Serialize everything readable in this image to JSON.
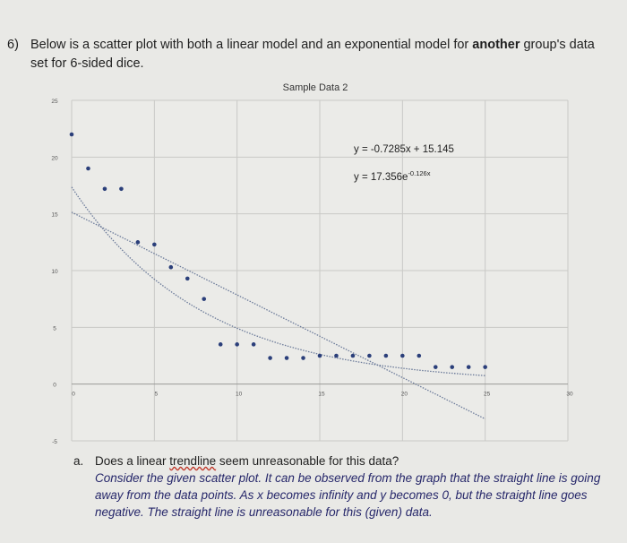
{
  "question": {
    "number": "6)",
    "text_before_bold": "Below is a scatter plot with both a linear model and an exponential model for ",
    "bold_text": "another",
    "text_after_bold": " group's data",
    "line2": "set for 6-sided dice."
  },
  "part_a": {
    "label": "a.",
    "question_before": "Does a linear ",
    "question_underlined": "trendline",
    "question_after": " seem unreasonable for this data?",
    "answer": "Consider the given scatter plot. It can be observed from the graph that the straight line is going away from the data points. As x becomes infinity and y becomes 0, but the straight line goes negative. The straight line is unreasonable for this (given) data."
  },
  "chart_data": {
    "type": "scatter",
    "title": "Sample Data 2",
    "xlim": [
      0,
      30
    ],
    "ylim": [
      -5,
      25
    ],
    "x_ticks": [
      "0",
      "5",
      "10",
      "15",
      "20",
      "25",
      "30"
    ],
    "y_ticks": [
      "25",
      "20",
      "15",
      "10",
      "5",
      "0",
      "-5"
    ],
    "grid": true,
    "series": [
      {
        "x": [
          0,
          1,
          2,
          3,
          4,
          5,
          6,
          7,
          8,
          9,
          10,
          11,
          12,
          13,
          14,
          15,
          16,
          17,
          18,
          19,
          20,
          21,
          22,
          23,
          24,
          25
        ],
        "y": [
          22,
          19,
          17.2,
          17.2,
          12.5,
          12.3,
          10.3,
          9.3,
          7.5,
          3.5,
          3.5,
          3.5,
          2.3,
          2.3,
          2.3,
          2.5,
          2.5,
          2.5,
          2.5,
          2.5,
          2.5,
          2.5,
          1.5,
          1.5,
          1.5,
          1.5
        ]
      }
    ],
    "trendlines": [
      {
        "kind": "linear",
        "slope": -0.7285,
        "intercept": 15.145,
        "label": "y = -0.7285x + 15.145"
      },
      {
        "kind": "exponential",
        "a": 17.356,
        "b": -0.126,
        "label_base": "y = 17.356e",
        "label_exp": "-0.126x"
      }
    ],
    "colors": {
      "points": "#2b3f7a",
      "trendline": "#6b7a99",
      "grid": "#c9c9c6"
    }
  }
}
